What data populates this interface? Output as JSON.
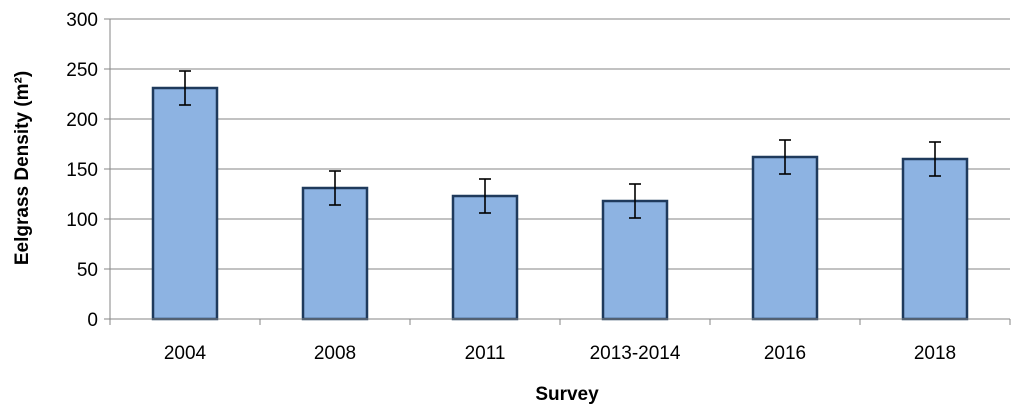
{
  "chart_data": {
    "type": "bar",
    "categories": [
      "2004",
      "2008",
      "2011",
      "2013-2014",
      "2016",
      "2018"
    ],
    "values": [
      231,
      131,
      123,
      118,
      162,
      160
    ],
    "error": [
      17,
      17,
      17,
      17,
      17,
      17
    ],
    "xlabel": "Survey",
    "ylabel": "Eelgrass Density (m²)",
    "ylim": [
      0,
      300
    ],
    "yticks": [
      "0",
      "50",
      "100",
      "150",
      "200",
      "250",
      "300"
    ],
    "grid": true,
    "legend": "none",
    "colors": {
      "bar_fill": "#8db3e2",
      "bar_stroke": "#1f3a5c"
    }
  }
}
